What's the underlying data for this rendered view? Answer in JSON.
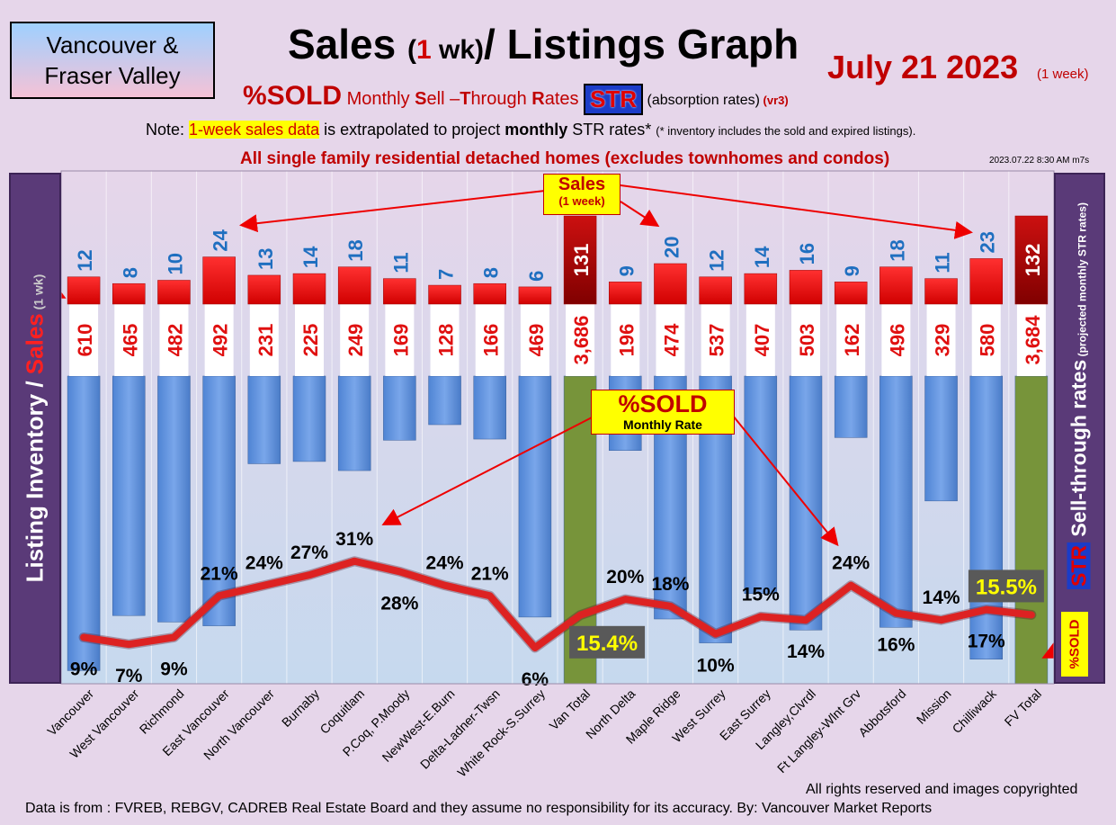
{
  "header": {
    "region_line1": "Vancouver &",
    "region_line2": "Fraser Valley",
    "title_pre": "Sales ",
    "title_paren_open": "(",
    "title_one": "1",
    "title_wk": " wk)",
    "title_post": "/ Listings Graph",
    "date": "July 21  2023",
    "date_note": "(1 week)",
    "subtitle_sold": "%SOLD",
    "subtitle_rates_pre": " Monthly ",
    "subtitle_S": "S",
    "subtitle_ell": "ell –",
    "subtitle_T": "T",
    "subtitle_hrough": "hrough ",
    "subtitle_R": "R",
    "subtitle_ates": "ates ",
    "subtitle_str": "STR",
    "subtitle_absorption": " (absorption rates)",
    "subtitle_vr": " (vr3)",
    "note_pre": "Note: ",
    "note_highlight": "1-week sales data",
    "note_mid": " is extrapolated to project ",
    "note_bold": "monthly",
    "note_post": " STR rates* ",
    "note_tiny": "(* inventory includes the sold and expired listings).",
    "scope": "All single family residential detached homes (excludes townhomes and condos)",
    "timestamp": "2023.07.22 8:30 AM m7s"
  },
  "side_labels": {
    "left_main": "Listing Inventory / ",
    "left_sales": "Sales",
    "left_small": " (1 wk)",
    "right_sell": "Sell-through rates",
    "right_small": " (projected monthly STR rates)",
    "right_str": "STR",
    "right_sold": "%SOLD"
  },
  "callouts": {
    "sales_a": "Sales",
    "sales_b": "(1 week)",
    "sold_a": "%SOLD",
    "sold_b": "Monthly Rate"
  },
  "footer": {
    "rights": "All rights reserved and  images copyrighted",
    "source": "Data is from : FVREB, REBGV, CADREB Real Estate Board and they assume no responsibility for its accuracy. By: Vancouver Market Reports"
  },
  "chart_data": {
    "type": "bar",
    "categories": [
      "Vancouver",
      "West Vancouver",
      "Richmond",
      "East Vancouver",
      "North Vancouver",
      "Burnaby",
      "Coquitlam",
      "P.Coq, P.Moody",
      "NewWest-E.Burn",
      "Delta-Ladner-Twsn",
      "White Rock-S.Surrey",
      "Van Total",
      "North Delta",
      "Maple Ridge",
      "West Surrey",
      "East Surrey",
      "Langley,Clvrdl",
      "Ft Langley-Wlnt Grv",
      "Abbotsford",
      "Mission",
      "Chilliwack",
      "FV Total"
    ],
    "listings": [
      610,
      465,
      482,
      492,
      231,
      225,
      249,
      169,
      128,
      166,
      469,
      3686,
      196,
      474,
      537,
      407,
      503,
      162,
      496,
      329,
      580,
      3684
    ],
    "listings_labels": [
      "610",
      "465",
      "482",
      "492",
      "231",
      "225",
      "249",
      "169",
      "128",
      "166",
      "469",
      "3,686",
      "196",
      "474",
      "537",
      "407",
      "503",
      "162",
      "496",
      "329",
      "580",
      "3,684"
    ],
    "sales": [
      12,
      8,
      10,
      24,
      13,
      14,
      18,
      11,
      7,
      8,
      6,
      131,
      9,
      20,
      12,
      14,
      16,
      9,
      18,
      11,
      23,
      132
    ],
    "sales_labels": [
      "12",
      "8",
      "10",
      "24",
      "13",
      "14",
      "18",
      "11",
      "7",
      "8",
      "6",
      "131",
      "9",
      "20",
      "12",
      "14",
      "16",
      "9",
      "18",
      "11",
      "23",
      "132"
    ],
    "str_percent": [
      9,
      7,
      9,
      21,
      24,
      27,
      31,
      28,
      24,
      21,
      6,
      15.4,
      20,
      18,
      10,
      15,
      14,
      24,
      16,
      14,
      17,
      15.5
    ],
    "str_labels": [
      "9%",
      "7%",
      "9%",
      "21%",
      "24%",
      "27%",
      "31%",
      "28%",
      "24%",
      "21%",
      "6%",
      "15.4%",
      "20%",
      "18%",
      "10%",
      "15%",
      "14%",
      "24%",
      "16%",
      "14%",
      "17%",
      "15.5%"
    ],
    "total_categories": [
      "Van Total",
      "FV Total"
    ],
    "colors": {
      "listing_bar": "#5b8fd9",
      "total_bar": "#77943a",
      "sales_bar": "#ee1111",
      "total_sales_bar": "#b00000",
      "str_line": "#dd2222",
      "sales_label": "#1f6fc0",
      "listing_label": "#e01010"
    }
  }
}
